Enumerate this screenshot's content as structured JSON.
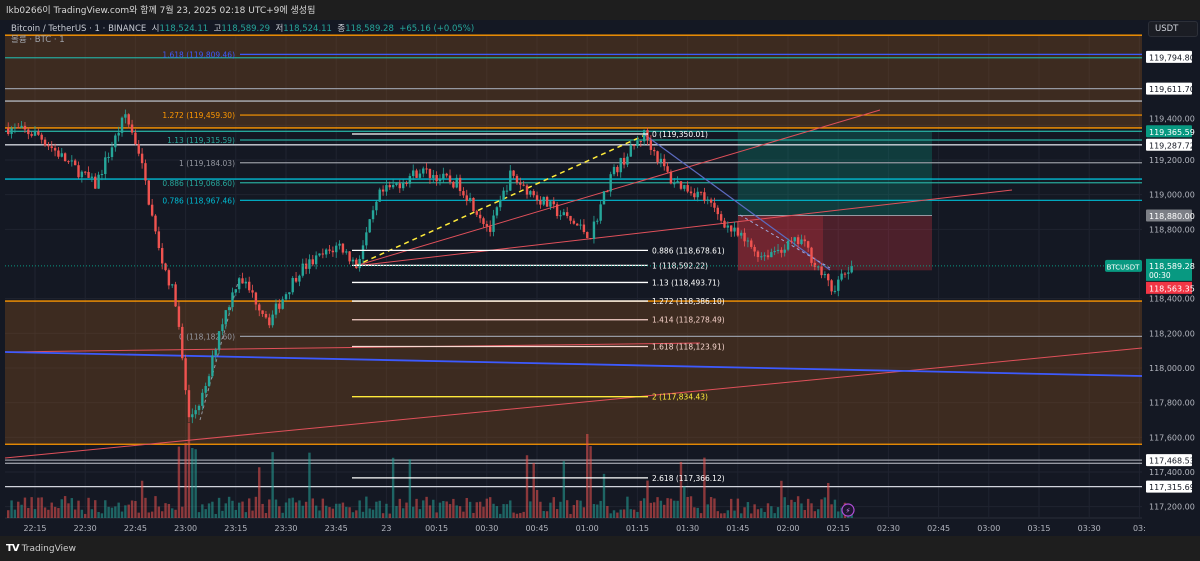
{
  "caption": "lkb0266이 TradingView.com와 함께 7월 23, 2025 02:18 UTC+9에 생성됨",
  "legend": {
    "symbol": "Bitcoin / TetherUS · 1 · BINANCE",
    "open_label": "시",
    "open": "118,524.11",
    "high_label": "고",
    "high": "118,589.29",
    "low_label": "저",
    "low": "118,524.11",
    "close_label": "종",
    "close": "118,589.28",
    "change": "+65.16 (+0.05%)",
    "volume_label": "볼륨 · BTC · 1"
  },
  "price_axis": {
    "unit": "USDT",
    "ticks": [
      119400,
      119200,
      119000,
      118800,
      118400,
      118200,
      118000,
      117800,
      117600,
      117400,
      117200
    ],
    "tick_labels": [
      "119,400.00",
      "119,200.00",
      "119,000.00",
      "118,800.00",
      "118,400.00",
      "118,200.00",
      "118,000.00",
      "117,800.00",
      "117,600.00",
      "117,400.00",
      "117,200.00"
    ],
    "price_tags": [
      {
        "price": 119794.8,
        "label": "119,794.80",
        "bg": "#ffffff",
        "fg": "#131722"
      },
      {
        "price": 119611.7,
        "label": "119,611.70",
        "bg": "#ffffff",
        "fg": "#131722"
      },
      {
        "price": 119365.59,
        "label": "119,365.59",
        "bg": "#089981",
        "fg": "#ffffff"
      },
      {
        "price": 119287.72,
        "label": "119,287.72",
        "bg": "#ffffff",
        "fg": "#131722"
      },
      {
        "price": 118880.0,
        "label": "118,880.00",
        "bg": "#7c7f86",
        "fg": "#ffffff"
      },
      {
        "price": 117468.53,
        "label": "117,468.53",
        "bg": "#ffffff",
        "fg": "#131722"
      },
      {
        "price": 117315.69,
        "label": "117,315.69",
        "bg": "#ffffff",
        "fg": "#131722"
      }
    ],
    "last_price": {
      "symbol": "BTCUSDT",
      "price": 118589.28,
      "label": "118,589.28",
      "countdown": "00:30",
      "color": "#089981"
    },
    "red_tag": {
      "price": 118563.35,
      "label": "118,563.35",
      "color": "#f23645"
    }
  },
  "time_axis": [
    "22:15",
    "22:30",
    "22:45",
    "23:00",
    "23:15",
    "23:30",
    "23:45",
    "23",
    "00:15",
    "00:30",
    "00:45",
    "01:00",
    "01:15",
    "01:30",
    "01:45",
    "02:00",
    "02:15",
    "02:30",
    "02:45",
    "03:00",
    "03:15",
    "03:30",
    "03:"
  ],
  "fib_left": [
    {
      "label": "1.618 (119,809.46)",
      "price": 119809.46,
      "color": "#3d5afe"
    },
    {
      "label": "1.272 (119,459.30)",
      "price": 119459.3,
      "color": "#ff9800"
    },
    {
      "label": "1.13 (119,315.59)",
      "price": 119315.59,
      "color": "#26a69a"
    },
    {
      "label": "1 (119,184.03)",
      "price": 119184.03,
      "color": "#9598a1"
    },
    {
      "label": "0.886 (119,068.60)",
      "price": 119068.6,
      "color": "#26a69a"
    },
    {
      "label": "0.786 (118,967.46)",
      "price": 118967.46,
      "color": "#00bcd4"
    },
    {
      "label": "0 (118,182.60)",
      "price": 118182.6,
      "color": "#9598a1"
    }
  ],
  "fib_right": [
    {
      "label": "0 (119,350.01)",
      "price": 119350.01,
      "color": "#ffffff"
    },
    {
      "label": "0.886 (118,678.61)",
      "price": 118678.61,
      "color": "#ffffff"
    },
    {
      "label": "1 (118,592.22)",
      "price": 118592.22,
      "color": "#ffffff"
    },
    {
      "label": "1.13 (118,493.71)",
      "price": 118493.71,
      "color": "#ffffff"
    },
    {
      "label": "1.272 (118,386.10)",
      "price": 118386.1,
      "color": "#ffffff"
    },
    {
      "label": "1.414 (118,278.49)",
      "price": 118278.49,
      "color": "#f5d0c8"
    },
    {
      "label": "1.618 (118,123.91)",
      "price": 118123.91,
      "color": "#f8d8d0"
    },
    {
      "label": "2 (117,834.43)",
      "price": 117834.43,
      "color": "#ffeb3b"
    },
    {
      "label": "2.618 (117,366.12)",
      "price": 117366.12,
      "color": "#ffffff"
    }
  ],
  "horizontal_levels": [
    {
      "price": 119920,
      "color": "#ff9800"
    },
    {
      "price": 119790,
      "color": "#26a69a"
    },
    {
      "price": 119611.7,
      "color": "#9598a1"
    },
    {
      "price": 119540,
      "color": "#b0b3ba"
    },
    {
      "price": 119385,
      "color": "#ff9800"
    },
    {
      "price": 119365.59,
      "color": "#26a69a"
    },
    {
      "price": 119287.72,
      "color": "#d1d4dc"
    },
    {
      "price": 119090,
      "color": "#00bcd4"
    },
    {
      "price": 118386.1,
      "color": "#ff9800"
    },
    {
      "price": 117560,
      "color": "#ff9800"
    },
    {
      "price": 117468.53,
      "color": "#9598a1"
    },
    {
      "price": 117450,
      "color": "#9598a1"
    },
    {
      "price": 117315.69,
      "color": "#d1d4dc"
    }
  ],
  "zones": [
    {
      "from": 119920,
      "to": 119385,
      "color": "rgba(130,75,30,0.38)"
    },
    {
      "from": 118386.1,
      "to": 117560,
      "color": "rgba(130,75,30,0.38)"
    }
  ],
  "position": {
    "target": 119365.59,
    "entry": 118880.0,
    "stop": 118563.35,
    "profit_color": "rgba(8,153,129,0.28)",
    "loss_color": "rgba(242,54,69,0.25)"
  },
  "price_path": [
    [
      "22:07",
      119385
    ],
    [
      "22:16",
      119345
    ],
    [
      "22:24",
      119200
    ],
    [
      "22:33",
      119055
    ],
    [
      "22:42",
      119460
    ],
    [
      "22:46",
      119255
    ],
    [
      "22:52",
      118680
    ],
    [
      "22:57",
      118390
    ],
    [
      "23:01",
      117700
    ],
    [
      "23:06",
      117870
    ],
    [
      "23:10",
      118220
    ],
    [
      "23:16",
      118535
    ],
    [
      "23:25",
      118275
    ],
    [
      "23:34",
      118565
    ],
    [
      "23:46",
      118710
    ],
    [
      "23:51",
      118592
    ],
    [
      "23:58",
      118998
    ],
    [
      "00:10",
      119140
    ],
    [
      "00:22",
      119055
    ],
    [
      "00:31",
      118795
    ],
    [
      "00:37",
      119110
    ],
    [
      "00:46",
      118970
    ],
    [
      "01:01",
      118765
    ],
    [
      "01:07",
      119110
    ],
    [
      "01:17",
      119350
    ],
    [
      "01:25",
      119085
    ],
    [
      "01:34",
      118998
    ],
    [
      "01:43",
      118795
    ],
    [
      "01:52",
      118650
    ],
    [
      "02:04",
      118735
    ],
    [
      "02:13",
      118450
    ],
    [
      "02:19",
      118589
    ]
  ],
  "colors": {
    "up": "#26a69a",
    "down": "#ef5350",
    "bg": "#141823",
    "grid": "#1f2330"
  },
  "footer": {
    "brand": "TradingView"
  }
}
